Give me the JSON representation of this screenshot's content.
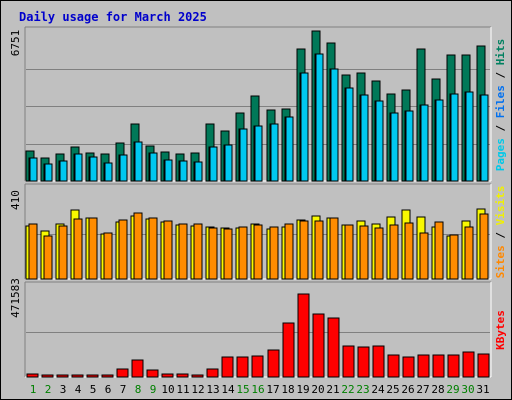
{
  "chart_data": {
    "type": "bar",
    "title": "Daily usage for March 2025",
    "categories": [
      "1",
      "2",
      "3",
      "4",
      "5",
      "6",
      "7",
      "8",
      "9",
      "10",
      "11",
      "12",
      "13",
      "14",
      "15",
      "16",
      "17",
      "18",
      "19",
      "20",
      "21",
      "22",
      "23",
      "24",
      "25",
      "26",
      "27",
      "28",
      "29",
      "30",
      "31"
    ],
    "weekend_days": [
      "1",
      "2",
      "8",
      "9",
      "15",
      "16",
      "22",
      "23",
      "29",
      "30"
    ],
    "panels": [
      {
        "id": "hits",
        "ymax_label": "6751",
        "ylim": [
          0,
          6751
        ],
        "right_labels": [
          {
            "text": "Pages",
            "color": "#00c8e8"
          },
          {
            "text": " / ",
            "color": "#000000"
          },
          {
            "text": "Files",
            "color": "#0070f0"
          },
          {
            "text": " / ",
            "color": "#000000"
          },
          {
            "text": "Hits",
            "color": "#008060"
          }
        ],
        "series": [
          {
            "name": "Hits",
            "color": "#007858",
            "values": [
              1372,
              1044,
              1220,
              1513,
              1282,
              1232,
              1694,
              2561,
              1586,
              1283,
              1232,
              1244,
              2580,
              2246,
              3078,
              3848,
              3201,
              3245,
              5948,
              6751,
              6190,
              4780,
              4880,
              4520,
              3898,
              4090,
              5950,
              4580,
              5670,
              5673,
              6066
            ]
          },
          {
            "name": "Files",
            "color": "#0060e8",
            "values": [
              1020,
              780,
              900,
              1210,
              1080,
              820,
              1150,
              1750,
              1280,
              960,
              900,
              860,
              1530,
              1640,
              2340,
              2460,
              2560,
              2860,
              4860,
              5730,
              5050,
              4190,
              3880,
              3620,
              3050,
              3130,
              3410,
              3640,
              3930,
              3990,
              3890
            ]
          },
          {
            "name": "Pages",
            "color": "#00c8f0",
            "values": [
              1020,
              780,
              900,
              1210,
              1080,
              820,
              1150,
              1750,
              1280,
              960,
              900,
              860,
              1530,
              1640,
              2340,
              2460,
              2560,
              2860,
              4860,
              5730,
              5050,
              4190,
              3880,
              3620,
              3050,
              3130,
              3410,
              3640,
              3930,
              3990,
              3890
            ]
          }
        ]
      },
      {
        "id": "visits",
        "ymax_label": "410",
        "ylim": [
          0,
          410
        ],
        "right_labels": [
          {
            "text": "Sites",
            "color": "#ff8800"
          },
          {
            "text": " / ",
            "color": "#000000"
          },
          {
            "text": "Visits",
            "color": "#f0f000"
          }
        ],
        "series": [
          {
            "name": "Visits",
            "color": "#f8f800",
            "values": [
              239,
              215,
              249,
              311,
              277,
              204,
              259,
              283,
              272,
              258,
              243,
              240,
              236,
              229,
              232,
              248,
              225,
              236,
              266,
              285,
              277,
              243,
              261,
              249,
              280,
              309,
              278,
              233,
              195,
              260,
              315
            ]
          },
          {
            "name": "Sites",
            "color": "#ff8c00",
            "values": [
              249,
              194,
              238,
              271,
              277,
              209,
              266,
              296,
              273,
              263,
              250,
              246,
              229,
              225,
              233,
              243,
              236,
              249,
              263,
              261,
              274,
              244,
              240,
              231,
              245,
              253,
              207,
              257,
              196,
              236,
              292
            ]
          }
        ]
      },
      {
        "id": "kbytes",
        "ymax_label": "471583",
        "ylim": [
          0,
          471583
        ],
        "right_labels": [
          {
            "text": "KBytes",
            "color": "#ff0000"
          }
        ],
        "series": [
          {
            "name": "KBytes",
            "color": "#ff0000",
            "values": [
              14000,
              8000,
              8000,
              8000,
              8000,
              8000,
              40000,
              90000,
              36000,
              17000,
              14000,
              10000,
              40000,
              102000,
              104000,
              108000,
              138000,
              279000,
              430000,
              325000,
              305000,
              159000,
              154000,
              159000,
              114000,
              104000,
              113000,
              114000,
              113000,
              129000,
              121000
            ]
          }
        ]
      }
    ]
  }
}
